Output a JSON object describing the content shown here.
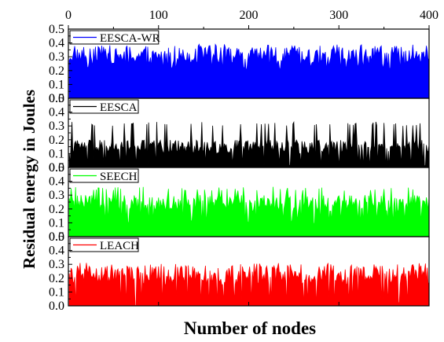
{
  "chart_data": {
    "type": "area",
    "xlabel": "Number of nodes",
    "ylabel": "Residual energy in Joules",
    "xlim": [
      0,
      400
    ],
    "x_ticks": [
      "0",
      "100",
      "200",
      "300",
      "400"
    ],
    "x_tick_values": [
      0,
      100,
      200,
      300,
      400
    ],
    "x_axis_position": "top",
    "ylim": [
      0,
      0.5
    ],
    "y_ticks": [
      "0.0",
      "0.1",
      "0.2",
      "0.3",
      "0.4",
      "0.5"
    ],
    "y_tick_values": [
      0.0,
      0.1,
      0.2,
      0.3,
      0.4,
      0.5
    ],
    "grid": false,
    "legend_placement": "top-left of each panel",
    "x_range_of_nodes": [
      1,
      400
    ],
    "panels": [
      {
        "series": [
          {
            "name": "EESCA-WR",
            "color": "#0000ff",
            "profile": {
              "min": 0.2,
              "max": 0.39,
              "typical": [
                0.25,
                0.36
              ],
              "points": 400
            }
          }
        ]
      },
      {
        "series": [
          {
            "name": "EESCA",
            "color": "#000000",
            "profile": {
              "min": 0.0,
              "max": 0.33,
              "typical": [
                0.1,
                0.2
              ],
              "points": 400
            }
          }
        ]
      },
      {
        "series": [
          {
            "name": "SEECH",
            "color": "#00ff00",
            "profile": {
              "min": 0.09,
              "max": 0.36,
              "typical": [
                0.18,
                0.3
              ],
              "points": 400
            }
          }
        ]
      },
      {
        "series": [
          {
            "name": "LEACH",
            "color": "#ff0000",
            "profile": {
              "min": 0.0,
              "max": 0.31,
              "typical": [
                0.15,
                0.29
              ],
              "points": 400
            }
          }
        ]
      }
    ]
  }
}
